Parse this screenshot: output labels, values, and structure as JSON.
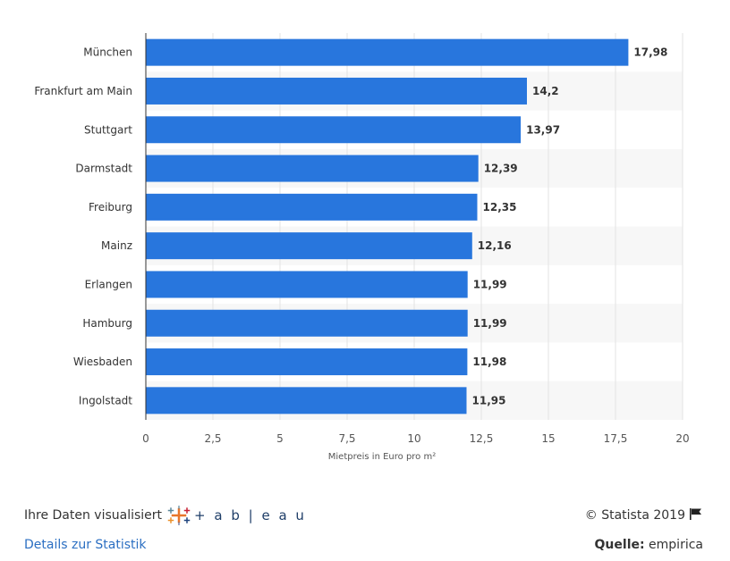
{
  "chart_data": {
    "type": "bar",
    "orientation": "horizontal",
    "categories": [
      "München",
      "Frankfurt am Main",
      "Stuttgart",
      "Darmstadt",
      "Freiburg",
      "Mainz",
      "Erlangen",
      "Hamburg",
      "Wiesbaden",
      "Ingolstadt"
    ],
    "values": [
      17.98,
      14.2,
      13.97,
      12.39,
      12.35,
      12.16,
      11.99,
      11.99,
      11.98,
      11.95
    ],
    "value_labels": [
      "17,98",
      "14,2",
      "13,97",
      "12,39",
      "12,35",
      "12,16",
      "11,99",
      "11,99",
      "11,98",
      "11,95"
    ],
    "xlabel": "Mietpreis in Euro pro m²",
    "ylabel": "",
    "xlim": [
      0,
      20
    ],
    "ticks": [
      0,
      2.5,
      5,
      7.5,
      10,
      12.5,
      15,
      17.5,
      20
    ],
    "tick_labels": [
      "0",
      "2,5",
      "5",
      "7,5",
      "10",
      "12,5",
      "15",
      "17,5",
      "20"
    ],
    "bar_color": "#2876dd",
    "grid": true
  },
  "footer": {
    "visualized_text": "Ihre Daten visualisiert",
    "tableau_text": "+ a b | e a u",
    "details_link": "Details zur Statistik",
    "copyright": "© Statista 2019",
    "source_label": "Quelle:",
    "source_value": "empirica"
  },
  "colors": {
    "link": "#2b6fc2",
    "stripe": "#f7f7f7"
  }
}
